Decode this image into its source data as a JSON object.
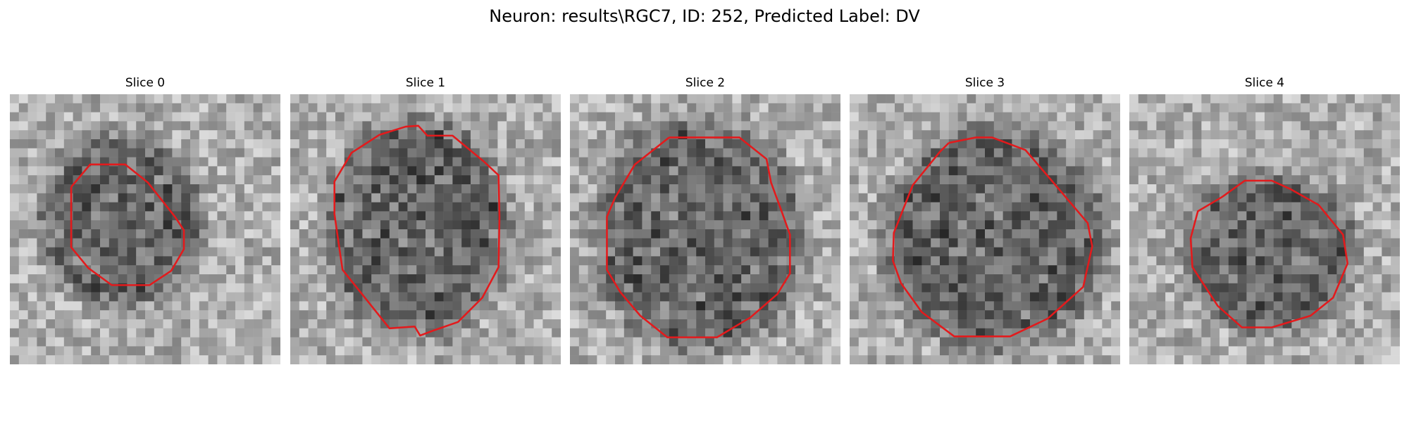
{
  "figure": {
    "title": "Neuron: results\\RGC7, ID: 252, Predicted Label: DV",
    "outline_color": "#e31a1c"
  },
  "panels": [
    {
      "title": "Slice 0"
    },
    {
      "title": "Slice 1"
    },
    {
      "title": "Slice 2"
    },
    {
      "title": "Slice 3"
    },
    {
      "title": "Slice 4"
    }
  ]
}
